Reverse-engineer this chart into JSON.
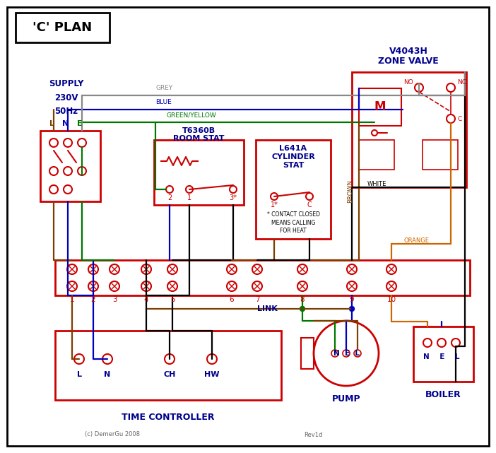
{
  "title": "'C' PLAN",
  "bg": "#ffffff",
  "RED": "#cc0000",
  "BLUE": "#0000bb",
  "GREEN": "#007700",
  "BROWN": "#7B3F00",
  "GREY": "#888888",
  "ORANGE": "#CC6600",
  "BLACK": "#000000",
  "NAVY": "#00008B",
  "terminal_labels": [
    "1",
    "2",
    "3",
    "4",
    "5",
    "6",
    "7",
    "8",
    "9",
    "10"
  ],
  "supply_label": "SUPPLY\n230V\n50Hz",
  "lne_labels": [
    "L",
    "N",
    "E"
  ],
  "room_stat_title1": "T6360B",
  "room_stat_title2": "ROOM STAT",
  "cyl_stat_line1": "L641A",
  "cyl_stat_line2": "CYLINDER",
  "cyl_stat_line3": "STAT",
  "zone_valve_title1": "V4043H",
  "zone_valve_title2": "ZONE VALVE",
  "time_ctrl_title": "TIME CONTROLLER",
  "tc_terminals": [
    "L",
    "N",
    "CH",
    "HW"
  ],
  "pump_title": "PUMP",
  "pump_nel": [
    "N",
    "E",
    "L"
  ],
  "boiler_title": "BOILER",
  "boiler_nel": [
    "N",
    "E",
    "L"
  ],
  "link_text": "LINK",
  "grey_label": "GREY",
  "blue_label": "BLUE",
  "gy_label": "GREEN/YELLOW",
  "brown_label": "BROWN",
  "white_label": "WHITE",
  "orange_label": "ORANGE",
  "contact_note": "* CONTACT CLOSED\nMEANS CALLING\nFOR HEAT",
  "footnote1": "(c) DemerGu 2008",
  "footnote2": "Rev1d",
  "no_label": "NO",
  "nc_label": "NC",
  "c_label": "C",
  "m_label": "M"
}
